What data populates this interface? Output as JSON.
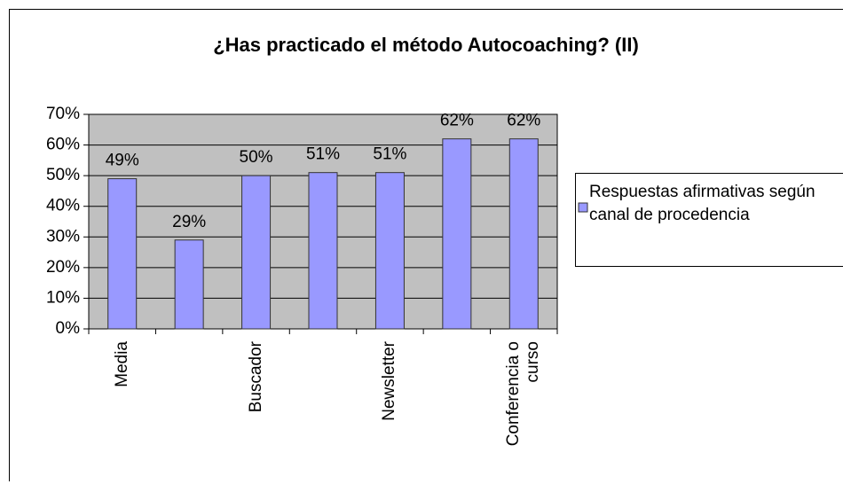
{
  "chart_data": {
    "type": "bar",
    "title": "¿Has practicado el método Autocoaching? (II)",
    "categories": [
      "Media",
      null,
      "Buscador",
      null,
      "Newsletter",
      null,
      "Conferencia o curso"
    ],
    "series": [
      {
        "name": "Respuestas afirmativas según canal de procedencia",
        "color": "#9999ff",
        "values": [
          49,
          29,
          50,
          51,
          51,
          62,
          62
        ],
        "value_labels": [
          "49%",
          "29%",
          "50%",
          "51%",
          "51%",
          "62%",
          "62%"
        ]
      }
    ],
    "ylim": [
      0,
      70
    ],
    "yticks": [
      {
        "value": 0,
        "label": "0%"
      },
      {
        "value": 10,
        "label": "10%"
      },
      {
        "value": 20,
        "label": "20%"
      },
      {
        "value": 30,
        "label": "30%"
      },
      {
        "value": 40,
        "label": "40%"
      },
      {
        "value": 50,
        "label": "50%"
      },
      {
        "value": 60,
        "label": "60%"
      },
      {
        "value": 70,
        "label": "70%"
      }
    ],
    "grid": true,
    "legend": "right",
    "plot_background": "#c0c0c0"
  }
}
